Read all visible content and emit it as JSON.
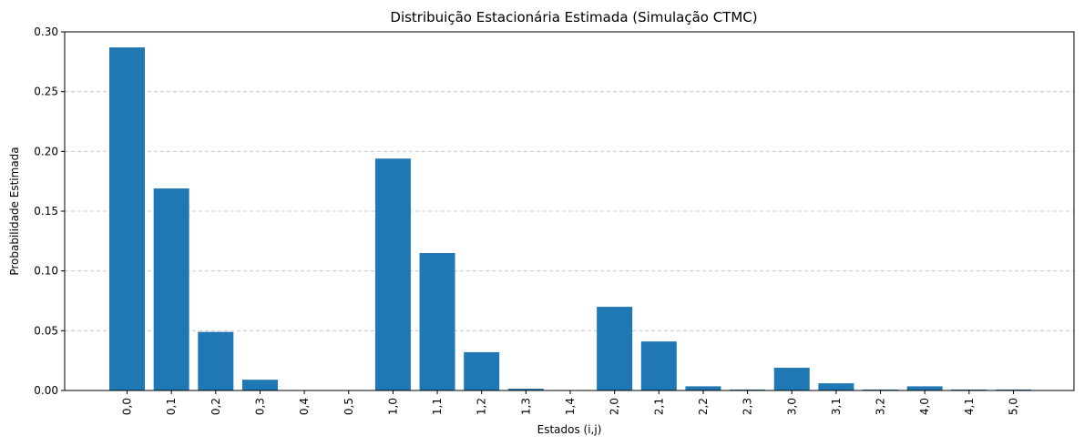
{
  "chart_data": {
    "type": "bar",
    "title": "Distribuição Estacionária Estimada (Simulação CTMC)",
    "xlabel": "Estados (i,j)",
    "ylabel": "Probabilidade Estimada",
    "categories": [
      "0,0",
      "0,1",
      "0,2",
      "0,3",
      "0,4",
      "0,5",
      "1,0",
      "1,1",
      "1,2",
      "1,3",
      "1,4",
      "2,0",
      "2,1",
      "2,2",
      "2,3",
      "3,0",
      "3,1",
      "3,2",
      "4,0",
      "4,1",
      "5,0"
    ],
    "values": [
      0.287,
      0.169,
      0.049,
      0.009,
      0.0,
      0.0,
      0.194,
      0.115,
      0.032,
      0.0015,
      0.0,
      0.07,
      0.041,
      0.0035,
      0.0008,
      0.019,
      0.006,
      0.0008,
      0.0035,
      0.0008,
      0.0008
    ],
    "ylim": [
      0,
      0.3
    ],
    "yticks": [
      0.0,
      0.05,
      0.1,
      0.15,
      0.2,
      0.25,
      0.3
    ],
    "ytick_labels": [
      "0.00",
      "0.05",
      "0.10",
      "0.15",
      "0.20",
      "0.25",
      "0.30"
    ],
    "grid": "y",
    "bar_color": "#1f77b4"
  }
}
